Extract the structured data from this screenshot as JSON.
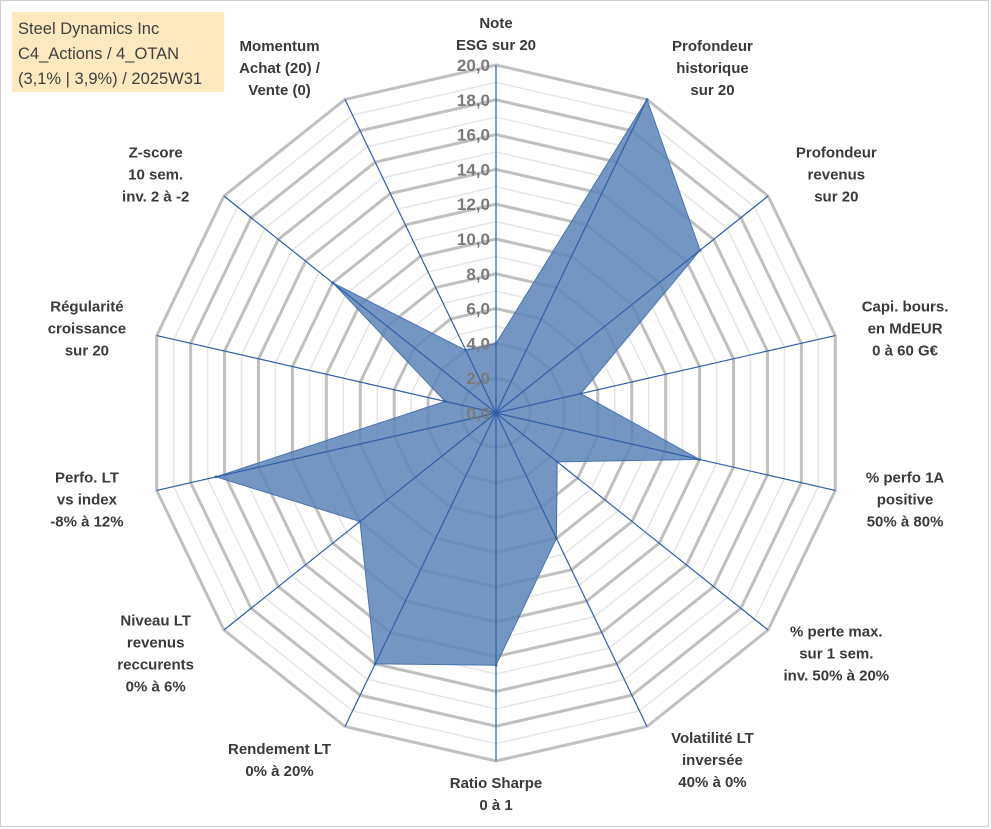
{
  "info_box": {
    "line1": "Steel Dynamics Inc",
    "line2": "C4_Actions / 4_OTAN",
    "line3": "(3,1% | 3,9%) / 2025W31"
  },
  "colors": {
    "fill": "#5b84b8",
    "stroke": "#4a74b0",
    "spoke": "#2f5fa8",
    "grid_major": "#c0c0c0",
    "grid_minor": "#e6e6e6",
    "info_bg": "#fde9bd"
  },
  "chart_data": {
    "type": "radar",
    "rmin": 0,
    "rmax": 20,
    "major_step": 2,
    "minor_step": 1,
    "tick_labels": [
      "0,0",
      "2,0",
      "4,0",
      "6,0",
      "8,0",
      "10,0",
      "12,0",
      "14,0",
      "16,0",
      "18,0",
      "20,0"
    ],
    "axes": [
      {
        "label": [
          "Note",
          "ESG sur 20"
        ],
        "value": 4.0
      },
      {
        "label": [
          "Profondeur",
          "historique",
          "sur 20"
        ],
        "value": 20.0
      },
      {
        "label": [
          "Profondeur",
          "revenus",
          "sur 20"
        ],
        "value": 15.0
      },
      {
        "label": [
          "Capi. bours.",
          "en MdEUR",
          "0 à 60 G€"
        ],
        "value": 5.0
      },
      {
        "label": [
          "% perfo 1A",
          "positive",
          "50% à 80%"
        ],
        "value": 12.0
      },
      {
        "label": [
          "% perte max.",
          "sur 1 sem.",
          "inv. 50% à 20%"
        ],
        "value": 4.5
      },
      {
        "label": [
          "Volatilité LT",
          "inversée",
          "40% à 0%"
        ],
        "value": 8.0
      },
      {
        "label": [
          "Ratio Sharpe",
          "0 à 1"
        ],
        "value": 14.5
      },
      {
        "label": [
          "Rendement LT",
          "0% à 20%"
        ],
        "value": 16.0
      },
      {
        "label": [
          "Niveau LT",
          "revenus",
          "reccurents",
          "0% à 6%"
        ],
        "value": 10.0
      },
      {
        "label": [
          "Perfo. LT",
          "vs index",
          "-8% à 12%"
        ],
        "value": 16.5
      },
      {
        "label": [
          "Régularité",
          "croissance",
          "sur 20"
        ],
        "value": 3.0
      },
      {
        "label": [
          "Z-score",
          "10 sem.",
          "inv. 2 à -2"
        ],
        "value": 12.0
      },
      {
        "label": [
          "Momentum",
          "Achat (20) /",
          "Vente (0)"
        ],
        "value": 4.0
      }
    ]
  }
}
